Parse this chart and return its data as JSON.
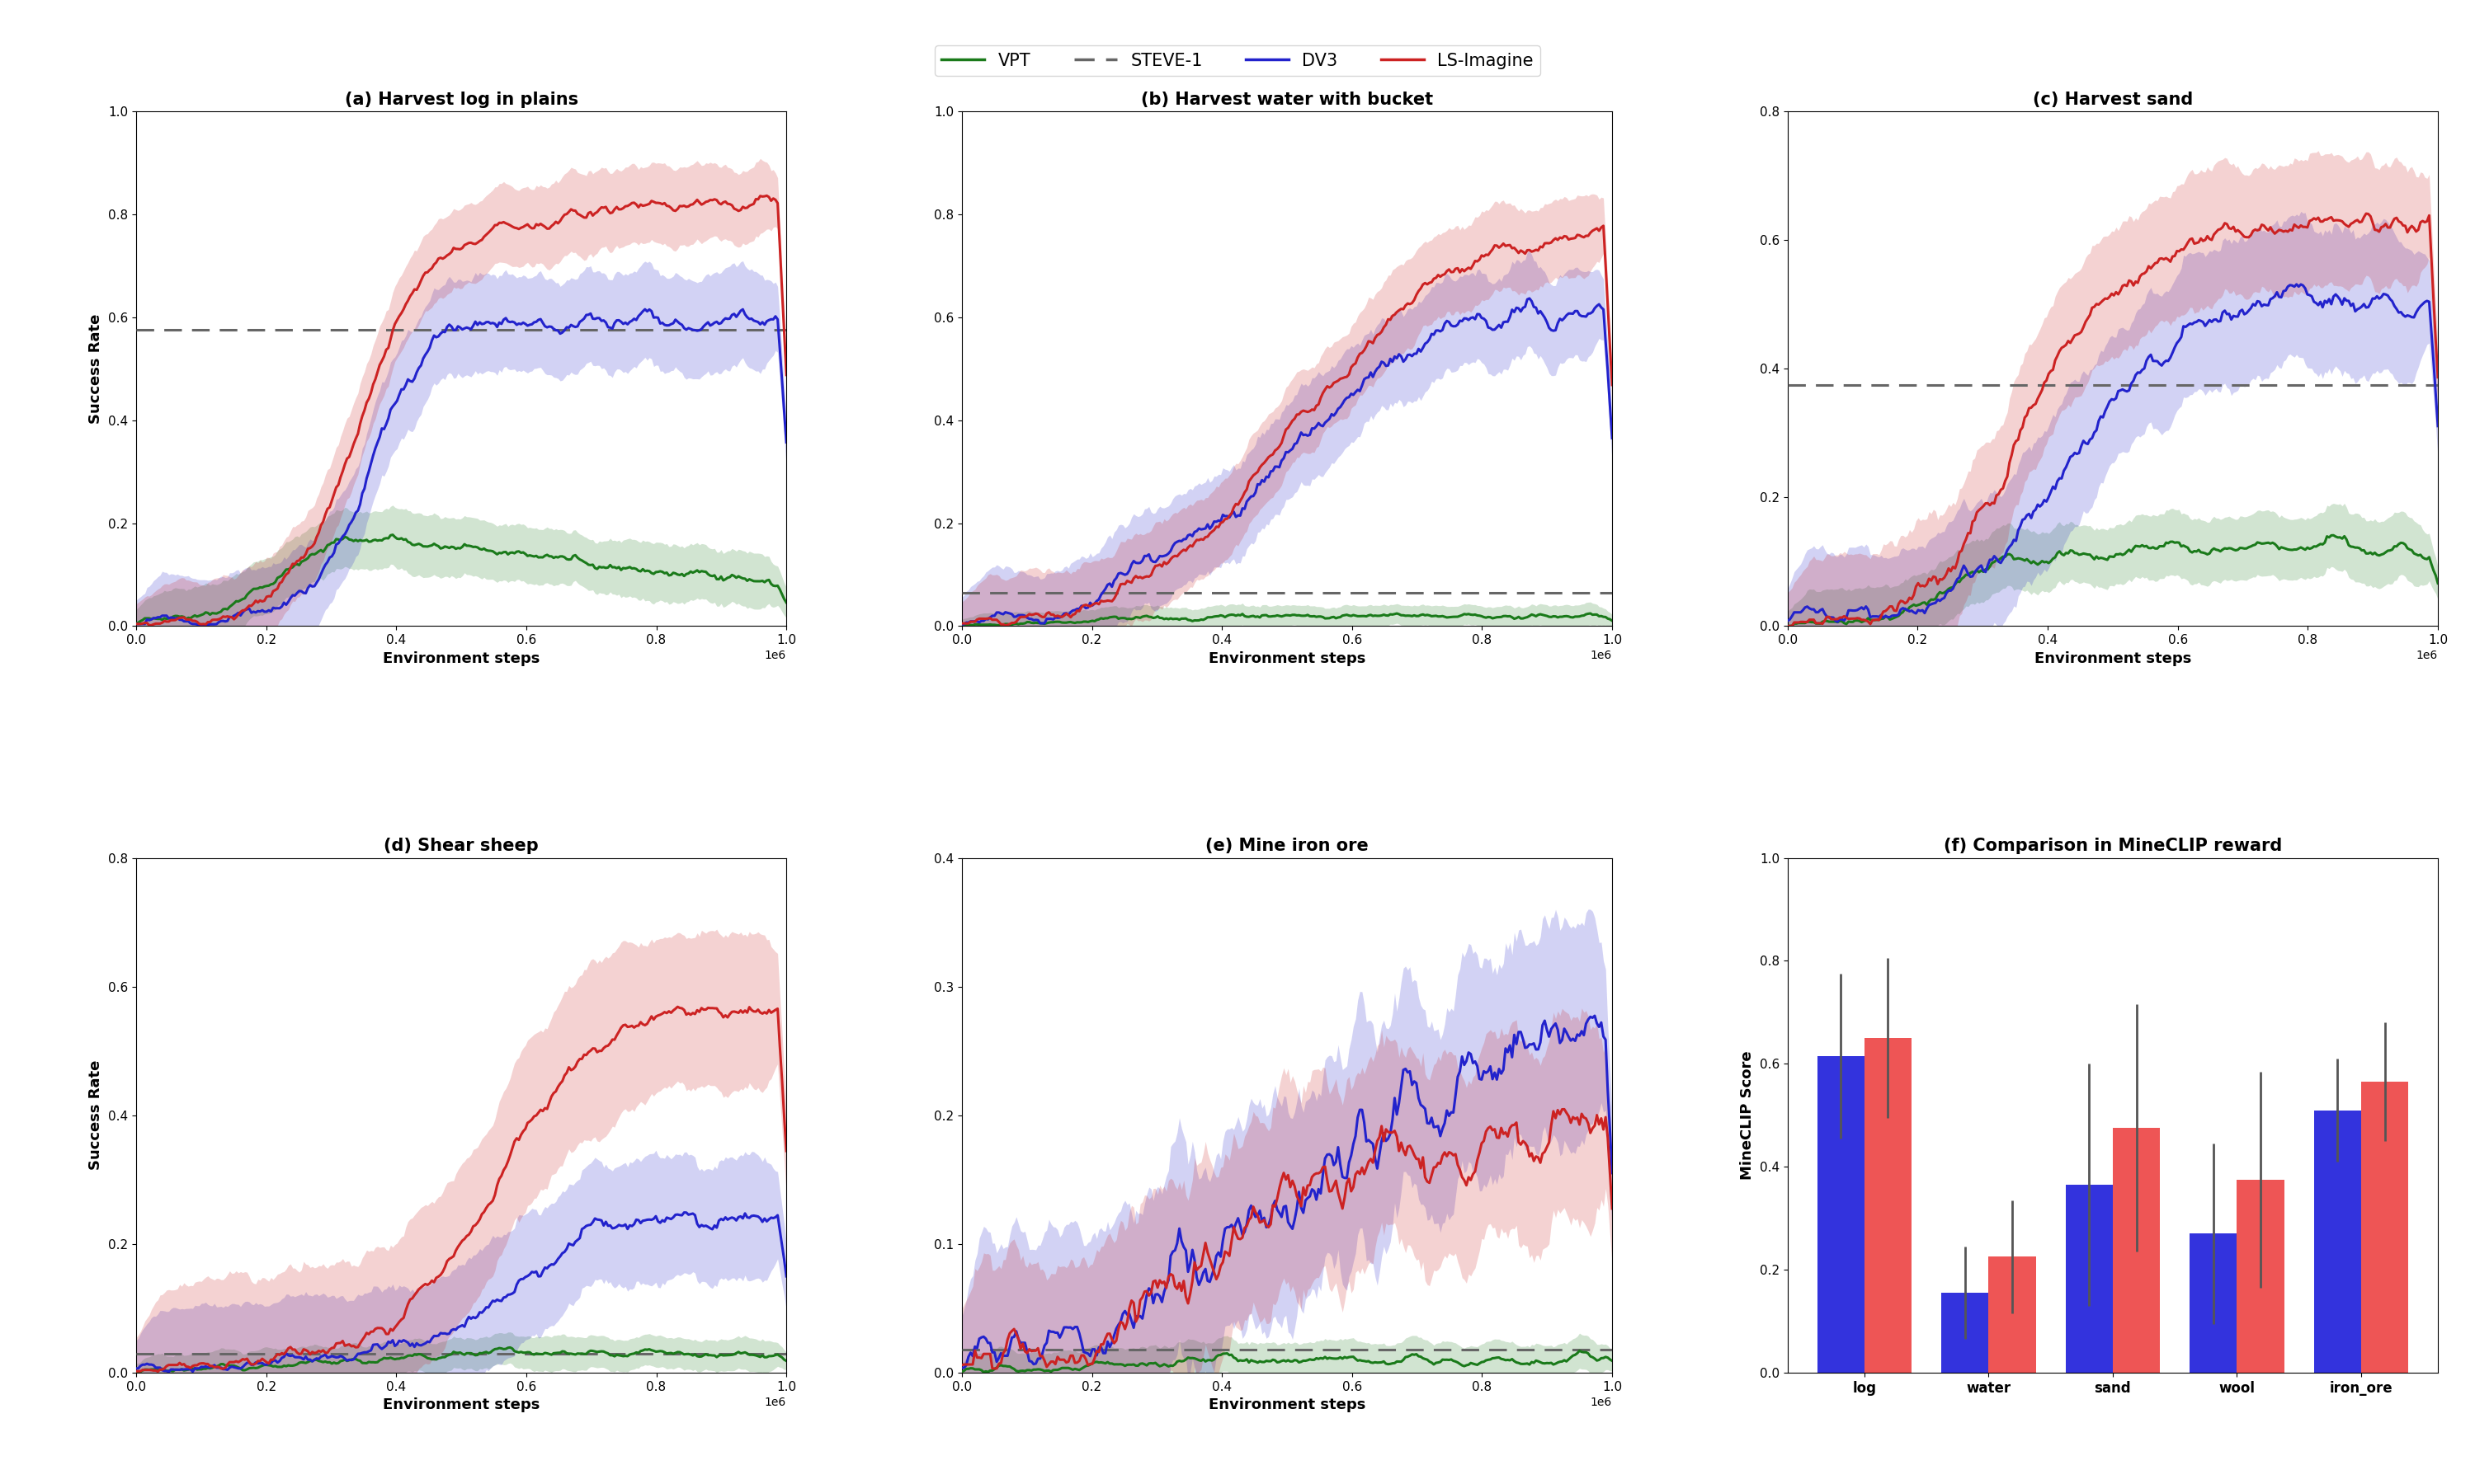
{
  "subplot_titles": [
    "(a) Harvest log in plains",
    "(b) Harvest water with bucket",
    "(c) Harvest sand",
    "(d) Shear sheep",
    "(e) Mine iron ore",
    "(f) Comparison in MineCLIP reward"
  ],
  "ylims_line": [
    [
      0.0,
      1.0
    ],
    [
      0.0,
      1.0
    ],
    [
      0.0,
      0.8
    ],
    [
      0.0,
      0.8
    ],
    [
      0.0,
      0.4
    ],
    [
      0.0,
      1.0
    ]
  ],
  "yticks_line": [
    [
      0.0,
      0.2,
      0.4,
      0.6,
      0.8,
      1.0
    ],
    [
      0.0,
      0.2,
      0.4,
      0.6,
      0.8,
      1.0
    ],
    [
      0.0,
      0.2,
      0.4,
      0.6,
      0.8
    ],
    [
      0.0,
      0.2,
      0.4,
      0.6,
      0.8
    ],
    [
      0.0,
      0.1,
      0.2,
      0.3,
      0.4
    ],
    [
      0.0,
      0.2,
      0.4,
      0.6,
      0.8,
      1.0
    ]
  ],
  "steve1_vals": [
    0.575,
    0.065,
    0.375,
    0.03,
    0.018,
    null
  ],
  "bar_categories": [
    "log",
    "water",
    "sand",
    "wool",
    "iron_ore"
  ],
  "bar_dv3": [
    0.615,
    0.155,
    0.365,
    0.27,
    0.51
  ],
  "bar_ls": [
    0.65,
    0.225,
    0.475,
    0.375,
    0.565
  ],
  "bar_dv3_err": [
    0.16,
    0.09,
    0.235,
    0.175,
    0.1
  ],
  "bar_ls_err": [
    0.155,
    0.11,
    0.24,
    0.21,
    0.115
  ],
  "bar_color_dv3": "#3333dd",
  "bar_color_ls": "#ee5555",
  "col_red": "#cc2222",
  "col_blue": "#2222cc",
  "col_green": "#1a7a1a",
  "col_gray": "#666666",
  "legend_entries": [
    "VPT",
    "STEVE-1",
    "DV3",
    "LS-Imagine"
  ],
  "ylabel_line": "Success Rate",
  "ylabel_bar": "MineCLIP Score",
  "xlabel_line": "Environment steps",
  "alpha_fill": 0.2,
  "lw": 2.2
}
